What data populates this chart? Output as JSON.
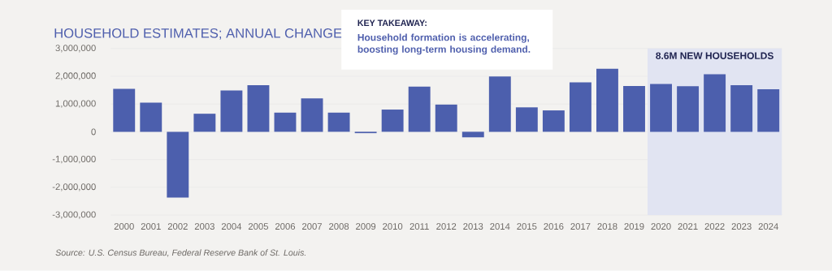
{
  "chart_data": {
    "type": "bar",
    "title": "HOUSEHOLD ESTIMATES; ANNUAL CHANGE",
    "categories": [
      "2000",
      "2001",
      "2002",
      "2003",
      "2004",
      "2005",
      "2006",
      "2007",
      "2008",
      "2009",
      "2010",
      "2011",
      "2012",
      "2013",
      "2014",
      "2015",
      "2016",
      "2017",
      "2018",
      "2019",
      "2020",
      "2021",
      "2022",
      "2023",
      "2024"
    ],
    "values": [
      1550000,
      1050000,
      -2370000,
      650000,
      1490000,
      1680000,
      690000,
      1200000,
      690000,
      -50000,
      800000,
      1630000,
      980000,
      -200000,
      1990000,
      880000,
      770000,
      1780000,
      2270000,
      1650000,
      1720000,
      1640000,
      2070000,
      1680000,
      1530000
    ],
    "color": "#4c5fad",
    "ylim": [
      -3000000,
      3000000
    ],
    "yticks": [
      {
        "value": -3000000,
        "label": "-3,000,000"
      },
      {
        "value": -2000000,
        "label": "-2,000,000"
      },
      {
        "value": -1000000,
        "label": "-1,000,000"
      },
      {
        "value": 0,
        "label": "0"
      },
      {
        "value": 1000000,
        "label": "1,000,000"
      },
      {
        "value": 2000000,
        "label": "2,000,000"
      },
      {
        "value": 3000000,
        "label": "3,000,000"
      }
    ],
    "grid": "y",
    "bands": [
      {
        "axis": "x",
        "from": "2020",
        "to": "2024",
        "label": "8.6M NEW HOUSEHOLDS",
        "color": "#e1e4f2"
      }
    ],
    "annotations": [
      "KEY TAKEAWAY:",
      "Household formation is accelerating, boosting long-term housing demand.",
      "Source: U.S. Census Bureau, Federal Reserve Bank of St. Louis."
    ]
  }
}
